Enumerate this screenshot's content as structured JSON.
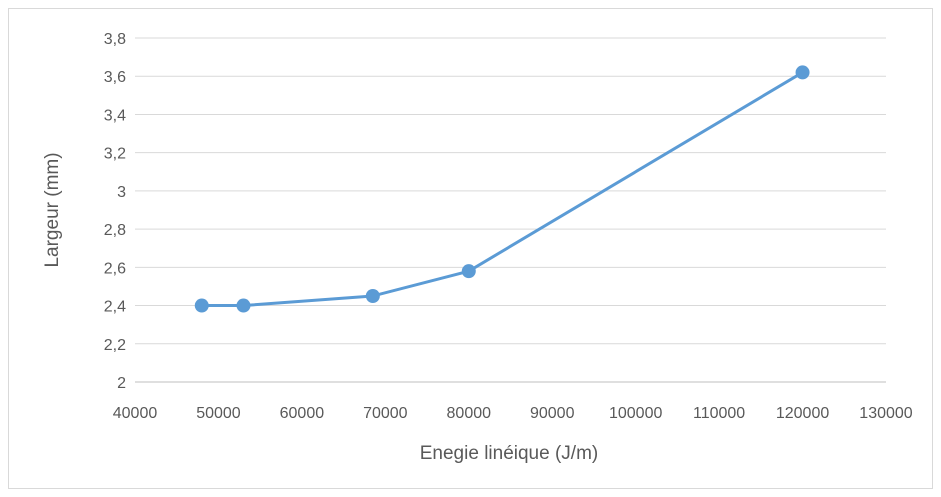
{
  "chart_data": {
    "type": "line",
    "title": "",
    "xlabel": "Enegie linéique (J/m)",
    "ylabel": "Largeur (mm)",
    "xlim": [
      40000,
      130000
    ],
    "ylim": [
      2,
      3.8
    ],
    "x_ticks": [
      "40000",
      "50000",
      "60000",
      "70000",
      "80000",
      "90000",
      "100000",
      "110000",
      "120000",
      "130000"
    ],
    "y_ticks": [
      "2",
      "2,2",
      "2,4",
      "2,6",
      "2,8",
      "3",
      "3,2",
      "3,4",
      "3,6",
      "3,8"
    ],
    "grid": "horizontal",
    "legend": "none",
    "series": [
      {
        "color": "#5b9bd5",
        "x": [
          48000,
          53000,
          68500,
          80000,
          120000
        ],
        "y": [
          2.4,
          2.4,
          2.45,
          2.58,
          3.62
        ]
      }
    ]
  }
}
